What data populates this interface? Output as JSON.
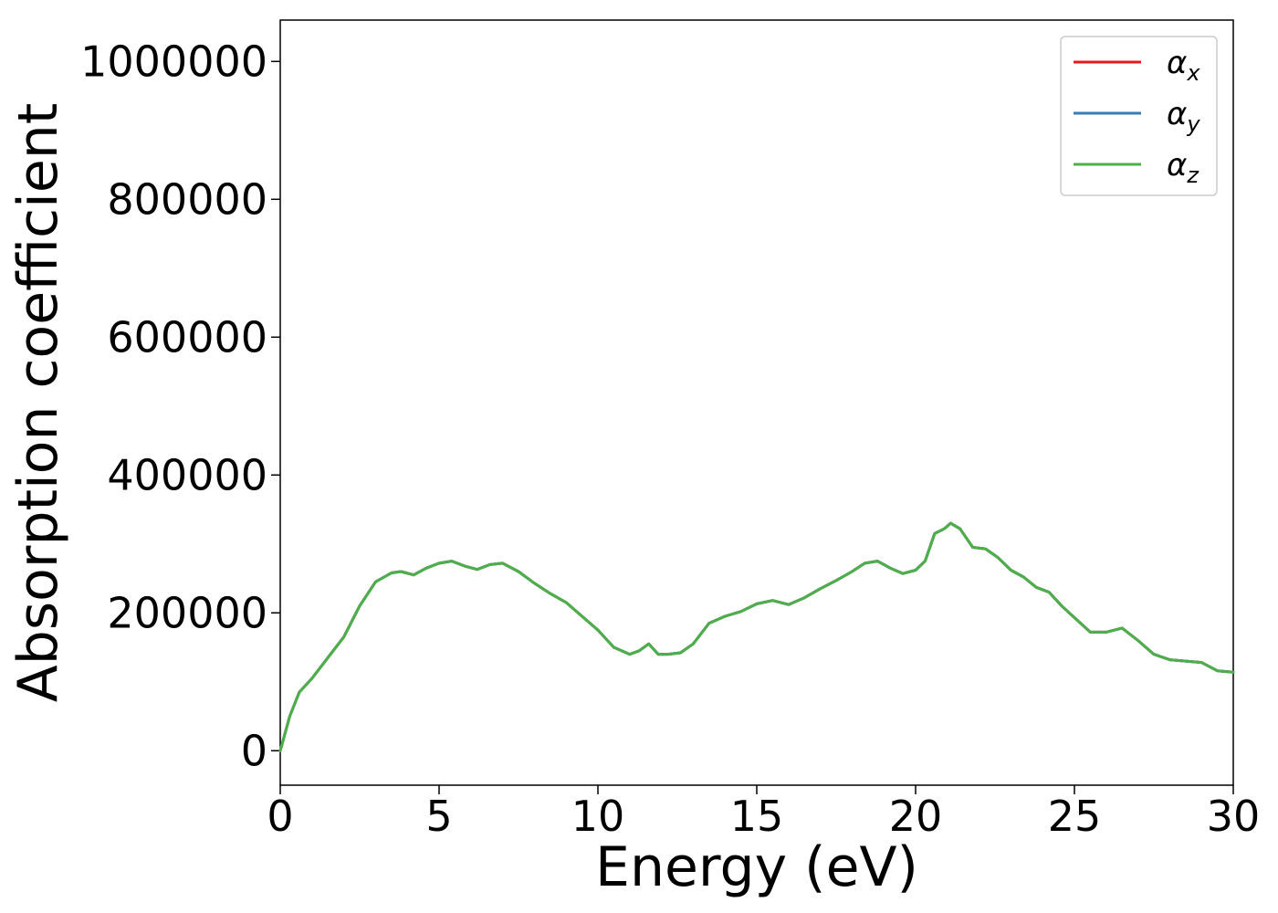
{
  "chart_data": {
    "type": "line",
    "title": "",
    "xlabel": "Energy (eV)",
    "ylabel": "Absorption coefficient",
    "xlim": [
      0,
      30
    ],
    "ylim": [
      -50000,
      1060000
    ],
    "xticks": [
      0,
      5,
      10,
      15,
      20,
      25,
      30
    ],
    "xtick_labels": [
      "0",
      "5",
      "10",
      "15",
      "20",
      "25",
      "30"
    ],
    "yticks": [
      0,
      200000,
      400000,
      600000,
      800000,
      1000000
    ],
    "ytick_labels": [
      "0",
      "200000",
      "400000",
      "600000",
      "800000",
      "1000000"
    ],
    "grid": false,
    "legend_placement": "top-right",
    "x": [
      0,
      0.3,
      0.6,
      1.0,
      1.5,
      2.0,
      2.5,
      3.0,
      3.5,
      3.8,
      4.2,
      4.6,
      5.0,
      5.4,
      5.8,
      6.2,
      6.6,
      7.0,
      7.5,
      8.0,
      8.5,
      9.0,
      9.5,
      10.0,
      10.5,
      11.0,
      11.3,
      11.6,
      11.9,
      12.2,
      12.6,
      13.0,
      13.5,
      14.0,
      14.5,
      15.0,
      15.5,
      16.0,
      16.5,
      17.0,
      17.5,
      18.0,
      18.4,
      18.8,
      19.2,
      19.6,
      20.0,
      20.3,
      20.6,
      20.9,
      21.1,
      21.4,
      21.8,
      22.2,
      22.6,
      23.0,
      23.4,
      23.8,
      24.2,
      24.6,
      25.0,
      25.5,
      26.0,
      26.5,
      27.0,
      27.5,
      28.0,
      28.5,
      29.0,
      29.5,
      30.0
    ],
    "series": [
      {
        "name": "αx",
        "color": "#e41a1c",
        "values": [
          0,
          50000,
          85000,
          105000,
          135000,
          165000,
          210000,
          245000,
          258000,
          260000,
          255000,
          265000,
          272000,
          275000,
          268000,
          263000,
          270000,
          272000,
          260000,
          243000,
          228000,
          215000,
          195000,
          175000,
          150000,
          140000,
          145000,
          155000,
          140000,
          140000,
          142000,
          155000,
          185000,
          195000,
          202000,
          213000,
          218000,
          212000,
          222000,
          235000,
          247000,
          260000,
          272000,
          275000,
          265000,
          257000,
          262000,
          275000,
          315000,
          322000,
          330000,
          322000,
          295000,
          293000,
          280000,
          262000,
          252000,
          237000,
          230000,
          210000,
          193000,
          172000,
          172000,
          178000,
          160000,
          140000,
          132000,
          130000,
          128000,
          116000,
          114000
        ]
      },
      {
        "name": "αy",
        "color": "#377eb8",
        "values": [
          0,
          50000,
          85000,
          105000,
          135000,
          165000,
          210000,
          245000,
          258000,
          260000,
          255000,
          265000,
          272000,
          275000,
          268000,
          263000,
          270000,
          272000,
          260000,
          243000,
          228000,
          215000,
          195000,
          175000,
          150000,
          140000,
          145000,
          155000,
          140000,
          140000,
          142000,
          155000,
          185000,
          195000,
          202000,
          213000,
          218000,
          212000,
          222000,
          235000,
          247000,
          260000,
          272000,
          275000,
          265000,
          257000,
          262000,
          275000,
          315000,
          322000,
          330000,
          322000,
          295000,
          293000,
          280000,
          262000,
          252000,
          237000,
          230000,
          210000,
          193000,
          172000,
          172000,
          178000,
          160000,
          140000,
          132000,
          130000,
          128000,
          116000,
          114000
        ]
      },
      {
        "name": "αz",
        "color": "#4daf4a",
        "values": [
          0,
          50000,
          85000,
          105000,
          135000,
          165000,
          210000,
          245000,
          258000,
          260000,
          255000,
          265000,
          272000,
          275000,
          268000,
          263000,
          270000,
          272000,
          260000,
          243000,
          228000,
          215000,
          195000,
          175000,
          150000,
          140000,
          145000,
          155000,
          140000,
          140000,
          142000,
          155000,
          185000,
          195000,
          202000,
          213000,
          218000,
          212000,
          222000,
          235000,
          247000,
          260000,
          272000,
          275000,
          265000,
          257000,
          262000,
          275000,
          315000,
          322000,
          330000,
          322000,
          295000,
          293000,
          280000,
          262000,
          252000,
          237000,
          230000,
          210000,
          193000,
          172000,
          172000,
          178000,
          160000,
          140000,
          132000,
          130000,
          128000,
          116000,
          114000
        ]
      }
    ],
    "legend": [
      {
        "symbol": "α",
        "subscript": "x",
        "color": "#e41a1c"
      },
      {
        "symbol": "α",
        "subscript": "y",
        "color": "#377eb8"
      },
      {
        "symbol": "α",
        "subscript": "z",
        "color": "#4daf4a"
      }
    ]
  }
}
